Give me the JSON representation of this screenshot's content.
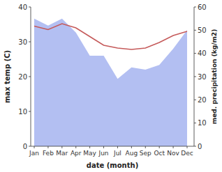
{
  "chart_data": {
    "type": "line",
    "xlabel": "date (month)",
    "ylabel": "max temp (C)",
    "y2label": "med. precipitation (kg/m2)",
    "categories": [
      "Jan",
      "Feb",
      "Mar",
      "Apr",
      "May",
      "Jun",
      "Jul",
      "Aug",
      "Sep",
      "Oct",
      "Nov",
      "Dec"
    ],
    "series": [
      {
        "type": "area",
        "axis": "y2",
        "color": "#b3bff2",
        "values": [
          55,
          52,
          55,
          49,
          39,
          39,
          29,
          34,
          33,
          35,
          42,
          50
        ]
      },
      {
        "type": "line",
        "color": "#c55a5a",
        "values": [
          34.5,
          33.5,
          35.2,
          34,
          31.5,
          29,
          28.2,
          27.8,
          28.2,
          29.8,
          31.8,
          33
        ]
      }
    ],
    "ylim": [
      0,
      40
    ],
    "yticks": [
      0,
      10,
      20,
      30,
      40
    ],
    "y2lim": [
      0,
      60
    ],
    "y2ticks": [
      0,
      10,
      20,
      30,
      40,
      50,
      60
    ]
  }
}
